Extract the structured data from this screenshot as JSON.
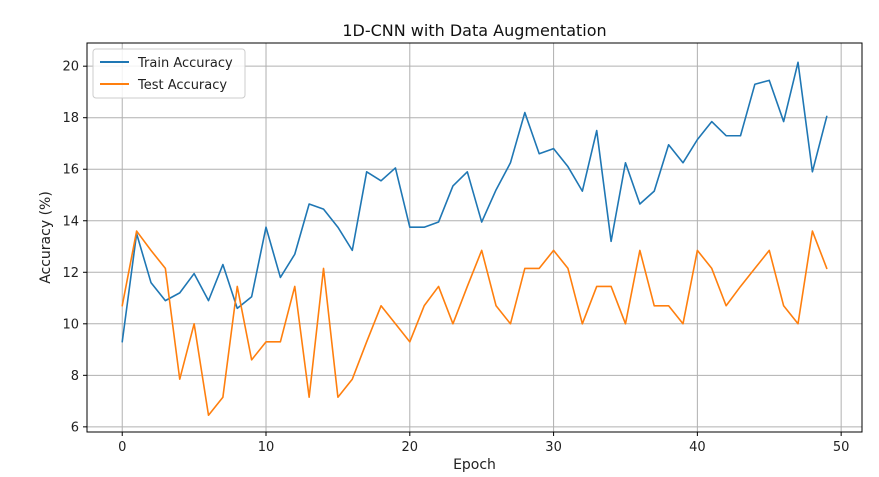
{
  "chart_data": {
    "type": "line",
    "title": "1D-CNN with Data Augmentation",
    "xlabel": "Epoch",
    "ylabel": "Accuracy (%)",
    "xlim": [
      -2.45,
      51.45
    ],
    "ylim": [
      5.8,
      20.9
    ],
    "xticks": [
      0,
      10,
      20,
      30,
      40,
      50
    ],
    "yticks": [
      6,
      8,
      10,
      12,
      14,
      16,
      18,
      20
    ],
    "grid": true,
    "legend_position": "top-left",
    "x": [
      0,
      1,
      2,
      3,
      4,
      5,
      6,
      7,
      8,
      9,
      10,
      11,
      12,
      13,
      14,
      15,
      16,
      17,
      18,
      19,
      20,
      21,
      22,
      23,
      24,
      25,
      26,
      27,
      28,
      29,
      30,
      31,
      32,
      33,
      34,
      35,
      36,
      37,
      38,
      39,
      40,
      41,
      42,
      43,
      44,
      45,
      46,
      47,
      48,
      49
    ],
    "series": [
      {
        "name": "Train Accuracy",
        "color": "#1f77b4",
        "values": [
          9.3,
          13.5,
          11.6,
          10.9,
          11.2,
          11.95,
          10.9,
          12.3,
          10.6,
          11.05,
          13.75,
          11.8,
          12.7,
          14.65,
          14.45,
          13.75,
          12.85,
          15.9,
          15.55,
          16.05,
          13.75,
          13.75,
          13.95,
          15.35,
          15.9,
          13.95,
          15.2,
          16.25,
          18.2,
          16.6,
          16.8,
          16.1,
          15.15,
          17.5,
          13.2,
          16.25,
          14.65,
          15.15,
          16.95,
          16.25,
          17.15,
          17.85,
          17.3,
          17.3,
          19.3,
          19.45,
          17.85,
          20.15,
          15.9,
          18.05
        ]
      },
      {
        "name": "Test Accuracy",
        "color": "#ff7f0e",
        "values": [
          10.7,
          13.6,
          12.85,
          12.15,
          7.85,
          10.0,
          6.45,
          7.15,
          11.45,
          8.6,
          9.3,
          9.3,
          11.45,
          7.15,
          12.15,
          7.15,
          7.85,
          9.3,
          10.7,
          10.0,
          9.3,
          10.7,
          11.45,
          10.0,
          11.45,
          12.85,
          10.7,
          10.0,
          12.15,
          12.15,
          12.85,
          12.15,
          10.0,
          11.45,
          11.45,
          10.0,
          12.85,
          10.7,
          10.7,
          10.0,
          12.85,
          12.15,
          10.7,
          11.45,
          12.15,
          12.85,
          10.7,
          10.0,
          13.6,
          12.15
        ]
      }
    ]
  }
}
